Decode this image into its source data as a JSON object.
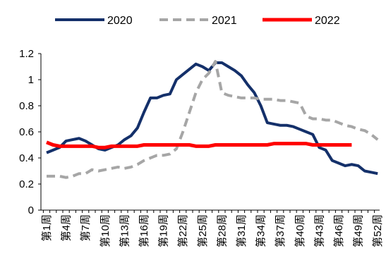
{
  "chart_data": {
    "type": "line",
    "categories": [
      "第1周",
      null,
      null,
      "第4周",
      null,
      null,
      "第7周",
      null,
      null,
      "第10周",
      null,
      null,
      "第13周",
      null,
      null,
      "第16周",
      null,
      null,
      "第19周",
      null,
      null,
      "第22周",
      null,
      null,
      "第25周",
      null,
      null,
      "第28周",
      null,
      null,
      "第31周",
      null,
      null,
      "第34周",
      null,
      null,
      "第37周",
      null,
      null,
      "第40周",
      null,
      null,
      "第43周",
      null,
      null,
      "第46周",
      null,
      null,
      "第49周",
      null,
      null,
      "第52周"
    ],
    "series": [
      {
        "name": "2020",
        "color": "#14306a",
        "dashed": false,
        "values": [
          0.44,
          0.46,
          0.48,
          0.53,
          0.54,
          0.55,
          0.53,
          0.5,
          0.47,
          0.46,
          0.48,
          0.5,
          0.54,
          0.57,
          0.63,
          0.75,
          0.86,
          0.86,
          0.88,
          0.89,
          1.0,
          1.04,
          1.08,
          1.12,
          1.1,
          1.07,
          1.13,
          1.13,
          1.1,
          1.07,
          1.03,
          0.96,
          0.9,
          0.8,
          0.67,
          0.66,
          0.65,
          0.65,
          0.64,
          0.62,
          0.6,
          0.58,
          0.48,
          0.46,
          0.38,
          0.36,
          0.34,
          0.35,
          0.34,
          0.3,
          0.29,
          0.28
        ]
      },
      {
        "name": "2021",
        "color": "#a6a6a6",
        "dashed": true,
        "values": [
          0.26,
          0.26,
          0.26,
          0.25,
          0.26,
          0.28,
          0.28,
          0.31,
          0.3,
          0.31,
          0.32,
          0.33,
          0.32,
          0.33,
          0.35,
          0.38,
          0.4,
          0.42,
          0.42,
          0.43,
          0.47,
          0.6,
          0.75,
          0.9,
          1.0,
          1.05,
          1.14,
          0.9,
          0.88,
          0.87,
          0.86,
          0.86,
          0.86,
          0.85,
          0.85,
          0.85,
          0.84,
          0.84,
          0.83,
          0.82,
          0.72,
          0.7,
          0.7,
          0.69,
          0.69,
          0.67,
          0.65,
          0.64,
          0.62,
          0.61,
          0.58,
          0.54
        ]
      },
      {
        "name": "2022",
        "color": "#ff0000",
        "dashed": false,
        "values": [
          0.52,
          0.5,
          0.49,
          0.49,
          0.49,
          0.49,
          0.49,
          0.49,
          0.48,
          0.48,
          0.49,
          0.49,
          0.49,
          0.49,
          0.49,
          0.5,
          0.5,
          0.5,
          0.5,
          0.5,
          0.5,
          0.5,
          0.5,
          0.49,
          0.49,
          0.49,
          0.5,
          0.5,
          0.5,
          0.5,
          0.5,
          0.5,
          0.5,
          0.5,
          0.5,
          0.51,
          0.51,
          0.51,
          0.51,
          0.51,
          0.51,
          0.5,
          0.5,
          0.5,
          0.5,
          0.5,
          0.5,
          0.5,
          null,
          null,
          null,
          null
        ]
      }
    ],
    "ylim": [
      0,
      1.2
    ],
    "yticks": [
      0,
      0.2,
      0.4,
      0.6,
      0.8,
      1,
      1.2
    ],
    "grid": false,
    "legend": "top"
  }
}
